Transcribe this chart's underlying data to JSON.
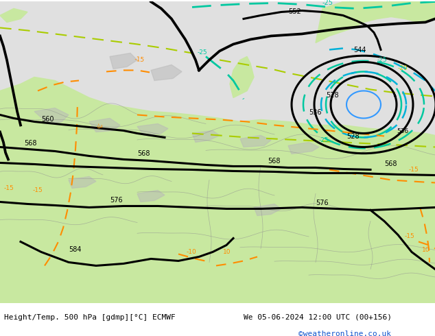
{
  "title_left": "Height/Temp. 500 hPa [gdmp][°C] ECMWF",
  "title_right": "We 05-06-2024 12:00 UTC (00+156)",
  "credit": "©weatheronline.co.uk",
  "bg_color": "#d0d0d0",
  "land_color": "#c8e8a0",
  "sea_color": "#e0e0e0",
  "black": "#000000",
  "orange": "#ff8c00",
  "lime": "#aacc00",
  "teal": "#00c8a0",
  "cyan": "#00b0d8",
  "blue": "#3399ff",
  "figsize": [
    6.34,
    4.9
  ],
  "dpi": 100
}
